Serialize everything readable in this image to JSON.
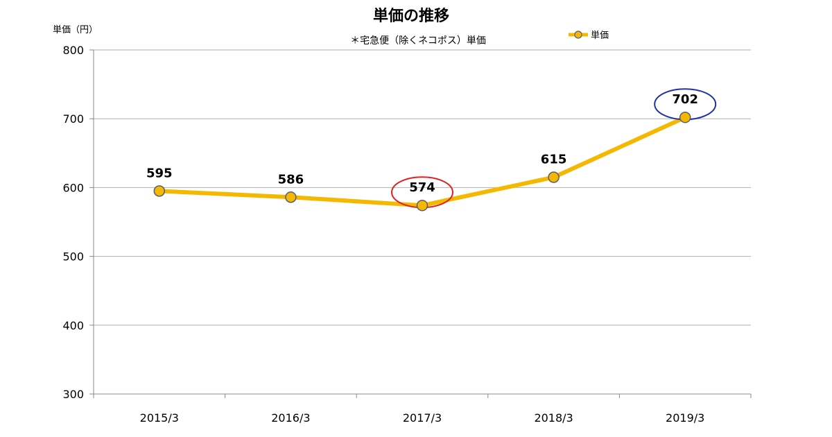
{
  "chart_data": {
    "type": "line",
    "title": "単価の推移",
    "subtitle": "＊宅急便（除くネコポス）単価",
    "ylabel": "単価（円）",
    "xlabel": "",
    "categories": [
      "2015/3",
      "2016/3",
      "2017/3",
      "2018/3",
      "2019/3"
    ],
    "series": [
      {
        "name": "単価",
        "values": [
          595,
          586,
          574,
          615,
          702
        ]
      }
    ],
    "data_labels": [
      "595",
      "586",
      "574",
      "615",
      "702"
    ],
    "ylim": [
      300,
      800
    ],
    "yticks": [
      300,
      400,
      500,
      600,
      700,
      800
    ],
    "grid": true,
    "legend_position": "top-right",
    "highlights": [
      {
        "category": "2017/3",
        "color": "#e02020"
      },
      {
        "category": "2019/3",
        "color": "#1e2fb0"
      }
    ],
    "colors": {
      "line": "#f5b800",
      "marker_edge": "#5a5a78",
      "grid": "#b0b0b0",
      "axis": "#888888"
    }
  }
}
